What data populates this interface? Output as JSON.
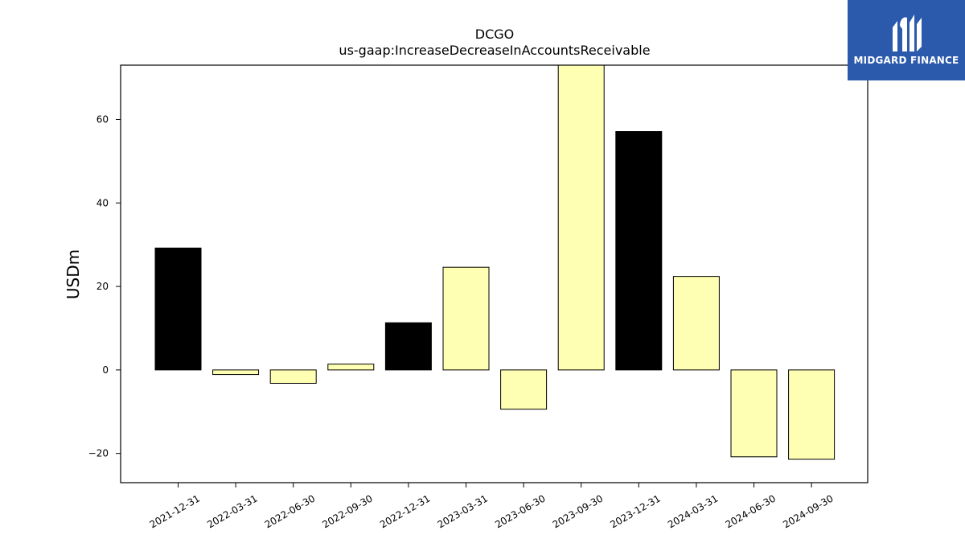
{
  "chart_data": {
    "type": "bar",
    "title": "DCGO",
    "subtitle": "us-gaap:IncreaseDecreaseInAccountsReceivable",
    "xlabel": "",
    "ylabel": "USDm",
    "ylim": [
      -27,
      73
    ],
    "yticks": [
      -20,
      0,
      20,
      40,
      60
    ],
    "ytick_labels": [
      "−20",
      "0",
      "20",
      "40",
      "60"
    ],
    "grid": false,
    "categories": [
      "2021-12-31",
      "2022-03-31",
      "2022-06-30",
      "2022-09-30",
      "2022-12-31",
      "2023-03-31",
      "2023-06-30",
      "2023-09-30",
      "2023-12-31",
      "2024-03-31",
      "2024-06-30",
      "2024-09-30"
    ],
    "values": [
      29.2,
      -1.1,
      -3.2,
      1.4,
      11.3,
      24.6,
      -9.4,
      73.0,
      57.1,
      22.4,
      -20.8,
      -21.4
    ],
    "bar_colors": [
      "#000000",
      "#ffffb3",
      "#ffffb3",
      "#ffffb3",
      "#000000",
      "#ffffb3",
      "#ffffb3",
      "#ffffb3",
      "#000000",
      "#ffffb3",
      "#ffffb3",
      "#ffffb3"
    ]
  },
  "logo": {
    "text": "MIDGARD FINANCE",
    "color": "#2b5aad"
  }
}
